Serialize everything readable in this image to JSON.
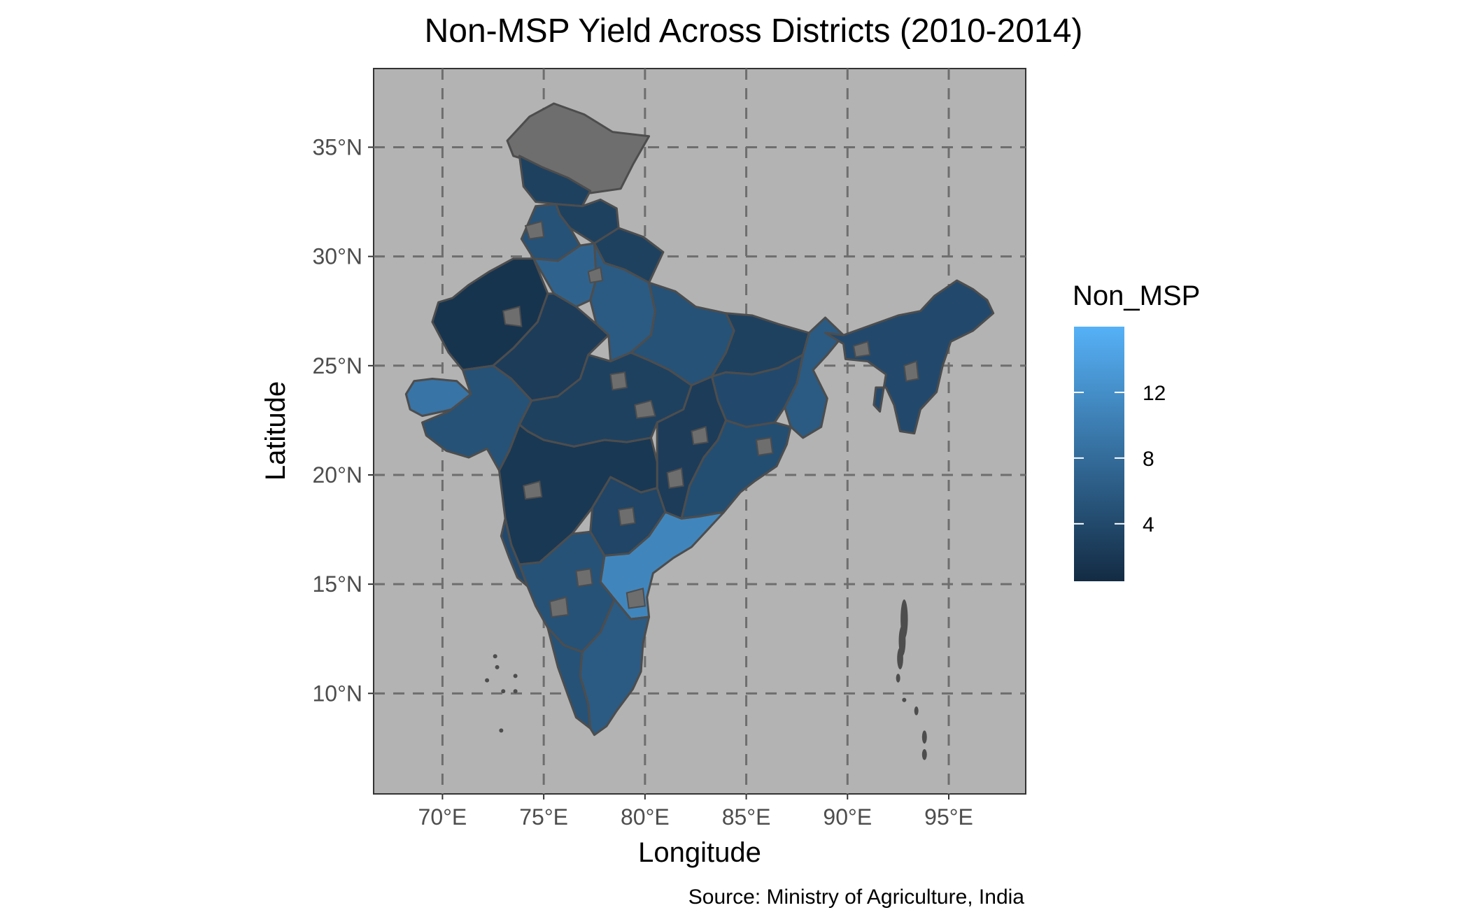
{
  "title": "Non-MSP Yield Across Districts (2010-2014)",
  "caption": "Source: Ministry of Agriculture, India",
  "xlabel": "Longitude",
  "ylabel": "Latitude",
  "x_ticks": [
    {
      "value": 70,
      "label": "70°E"
    },
    {
      "value": 75,
      "label": "75°E"
    },
    {
      "value": 80,
      "label": "80°E"
    },
    {
      "value": 85,
      "label": "85°E"
    },
    {
      "value": 90,
      "label": "90°E"
    },
    {
      "value": 95,
      "label": "95°E"
    }
  ],
  "y_ticks": [
    {
      "value": 35,
      "label": "35°N"
    },
    {
      "value": 30,
      "label": "30°N"
    },
    {
      "value": 25,
      "label": "25°N"
    },
    {
      "value": 20,
      "label": "20°N"
    },
    {
      "value": 15,
      "label": "15°N"
    },
    {
      "value": 10,
      "label": "10°N"
    }
  ],
  "legend": {
    "title": "Non_MSP",
    "ticks": [
      4,
      8,
      12
    ],
    "min": 0.5,
    "max": 16,
    "low_color": "#132B43",
    "high_color": "#56B1F7"
  },
  "colors": {
    "panel_bg": "#B3B3B3",
    "grid": "#6E6E6E",
    "border": "#4D4D4D",
    "na_fill": "#6E6E6E"
  },
  "chart_data": {
    "type": "map",
    "title": "Non-MSP Yield Across Districts (2010-2014)",
    "xlabel": "Longitude",
    "ylabel": "Latitude",
    "xlim": [
      66.6,
      98.8
    ],
    "ylim": [
      5.4,
      38.6
    ],
    "grid": "dashed major gridlines",
    "legend_position": "right",
    "fill_variable": "Non_MSP",
    "fill_range": [
      0.5,
      16
    ],
    "regions": [
      {
        "name": "Jammu & Kashmir north",
        "value": null
      },
      {
        "name": "Jammu & Kashmir south",
        "value": 3
      },
      {
        "name": "Himachal Pradesh",
        "value": 3
      },
      {
        "name": "Punjab",
        "value": 5
      },
      {
        "name": "Uttarakhand",
        "value": 3
      },
      {
        "name": "Haryana / Delhi",
        "value": 7
      },
      {
        "name": "Rajasthan west",
        "value": 1.5
      },
      {
        "name": "Rajasthan east",
        "value": 2.5
      },
      {
        "name": "Uttar Pradesh west",
        "value": 6
      },
      {
        "name": "Uttar Pradesh east",
        "value": 5
      },
      {
        "name": "Bihar",
        "value": 3
      },
      {
        "name": "West Bengal",
        "value": 6
      },
      {
        "name": "Gujarat Kutch",
        "value": 9
      },
      {
        "name": "Gujarat mainland",
        "value": 5
      },
      {
        "name": "Madhya Pradesh",
        "value": 3
      },
      {
        "name": "Jharkhand",
        "value": 4
      },
      {
        "name": "Chhattisgarh",
        "value": 2.5
      },
      {
        "name": "Odisha",
        "value": 4.5
      },
      {
        "name": "Maharashtra",
        "value": 2
      },
      {
        "name": "Telangana",
        "value": 3.5
      },
      {
        "name": "Andhra coast",
        "value": 11
      },
      {
        "name": "Karnataka",
        "value": 5
      },
      {
        "name": "Goa / Konkan",
        "value": 4
      },
      {
        "name": "Kerala",
        "value": 5
      },
      {
        "name": "Tamil Nadu",
        "value": 6
      },
      {
        "name": "Northeast states",
        "value": 4
      }
    ]
  }
}
